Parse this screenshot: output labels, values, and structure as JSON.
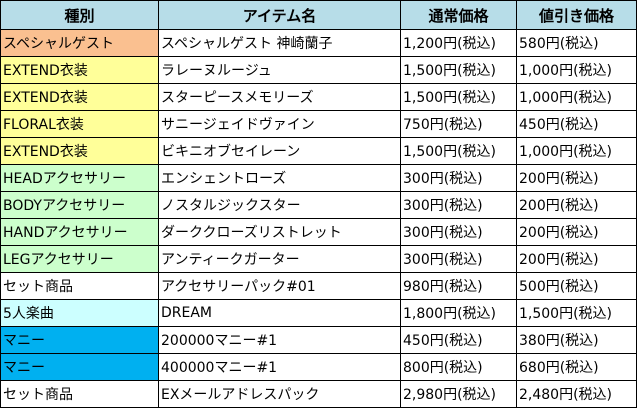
{
  "headers": {
    "type": "種別",
    "item": "アイテム名",
    "regular_price": "通常価格",
    "discount_price": "値引き価格"
  },
  "rows": [
    {
      "type": "スペシャルゲスト",
      "item": "スペシャルゲスト 神崎蘭子",
      "regular": "1,200円(税込)",
      "discount": "580円(税込)",
      "color": "#fac090"
    },
    {
      "type": "EXTEND衣装",
      "item": "ラレーヌルージュ",
      "regular": "1,500円(税込)",
      "discount": "1,000円(税込)",
      "color": "#ffff99"
    },
    {
      "type": "EXTEND衣装",
      "item": "スターピースメモリーズ",
      "regular": "1,500円(税込)",
      "discount": "1,000円(税込)",
      "color": "#ffff99"
    },
    {
      "type": "FLORAL衣装",
      "item": "サニージェイドヴァイン",
      "regular": "750円(税込)",
      "discount": "450円(税込)",
      "color": "#ffff99"
    },
    {
      "type": "EXTEND衣装",
      "item": "ビキニオブセイレーン",
      "regular": "1,500円(税込)",
      "discount": "1,000円(税込)",
      "color": "#ffff99"
    },
    {
      "type": "HEADアクセサリー",
      "item": "エンシェントローズ",
      "regular": "300円(税込)",
      "discount": "200円(税込)",
      "color": "#ccffcc"
    },
    {
      "type": "BODYアクセサリー",
      "item": "ノスタルジックスター",
      "regular": "300円(税込)",
      "discount": "200円(税込)",
      "color": "#ccffcc"
    },
    {
      "type": "HANDアクセサリー",
      "item": "ダーククローズリストレット",
      "regular": "300円(税込)",
      "discount": "200円(税込)",
      "color": "#ccffcc"
    },
    {
      "type": "LEGアクセサリー",
      "item": "アンティークガーター",
      "regular": "300円(税込)",
      "discount": "200円(税込)",
      "color": "#ccffcc"
    },
    {
      "type": "セット商品",
      "item": "アクセサリーパック#01",
      "regular": "980円(税込)",
      "discount": "500円(税込)",
      "color": "#ffffff"
    },
    {
      "type": "5人楽曲",
      "item": "DREAM",
      "regular": "1,800円(税込)",
      "discount": "1,500円(税込)",
      "color": "#ccffff"
    },
    {
      "type": "マニー",
      "item": "200000マニー#1",
      "regular": "450円(税込)",
      "discount": "380円(税込)",
      "color": "#00b0f0"
    },
    {
      "type": "マニー",
      "item": "400000マニー#1",
      "regular": "800円(税込)",
      "discount": "680円(税込)",
      "color": "#00b0f0"
    },
    {
      "type": "セット商品",
      "item": "EXメールアドレスパック",
      "regular": "2,980円(税込)",
      "discount": "2,480円(税込)",
      "color": "#ffffff"
    }
  ]
}
